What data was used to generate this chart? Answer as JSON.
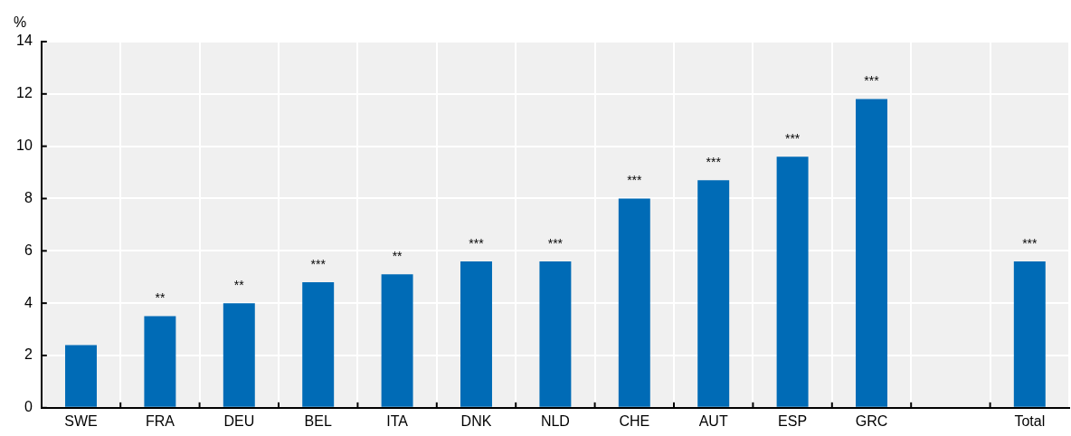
{
  "chart_data": {
    "type": "bar",
    "ylabel": "%",
    "categories": [
      "SWE",
      "FRA",
      "DEU",
      "BEL",
      "ITA",
      "DNK",
      "NLD",
      "CHE",
      "AUT",
      "ESP",
      "GRC",
      null,
      "Total"
    ],
    "values": [
      2.4,
      3.5,
      4.0,
      4.8,
      5.1,
      5.6,
      5.6,
      8.0,
      8.7,
      9.6,
      11.8,
      null,
      5.6
    ],
    "color": "#006bb6",
    "ylim": [
      0,
      14
    ],
    "yticks": [
      0,
      2,
      4,
      6,
      8,
      10,
      12,
      14
    ],
    "grid": true,
    "legend": false,
    "annotations": [
      {
        "text": "**",
        "x": "FRA",
        "y": 3.5
      },
      {
        "text": "**",
        "x": "DEU",
        "y": 4.0
      },
      {
        "text": "***",
        "x": "BEL",
        "y": 4.8
      },
      {
        "text": "**",
        "x": "ITA",
        "y": 5.1
      },
      {
        "text": "***",
        "x": "DNK",
        "y": 5.6
      },
      {
        "text": "***",
        "x": "NLD",
        "y": 5.6
      },
      {
        "text": "***",
        "x": "CHE",
        "y": 8.0
      },
      {
        "text": "***",
        "x": "AUT",
        "y": 8.7
      },
      {
        "text": "***",
        "x": "ESP",
        "y": 9.6
      },
      {
        "text": "***",
        "x": "GRC",
        "y": 11.8
      },
      {
        "text": "***",
        "x": "Total",
        "y": 5.6
      }
    ]
  }
}
